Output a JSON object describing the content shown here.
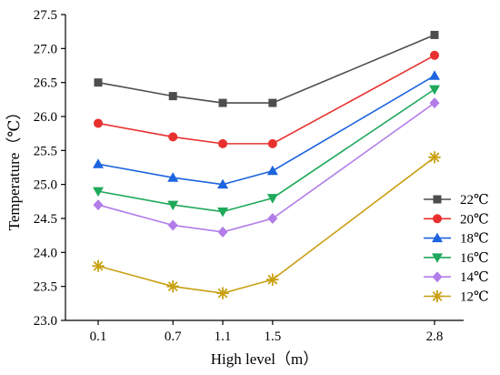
{
  "chart_data": {
    "type": "line",
    "xlabel": "High level（m）",
    "ylabel": "Temperature（℃）",
    "x": [
      0.1,
      0.7,
      1.1,
      1.5,
      2.8
    ],
    "x_tick_labels": [
      "0.1",
      "0.7",
      "1.1",
      "1.5",
      "2.8"
    ],
    "ylim": [
      23.0,
      27.5
    ],
    "y_ticks": [
      23.0,
      23.5,
      24.0,
      24.5,
      25.0,
      25.5,
      26.0,
      26.5,
      27.0,
      27.5
    ],
    "y_tick_labels": [
      "23.0",
      "23.5",
      "24.0",
      "24.5",
      "25.0",
      "25.5",
      "26.0",
      "26.5",
      "27.0",
      "27.5"
    ],
    "grid": false,
    "legend_position": "right",
    "series": [
      {
        "name": "22℃",
        "marker": "square",
        "color": "#4d4d4d",
        "values": [
          26.5,
          26.3,
          26.2,
          26.2,
          27.2
        ]
      },
      {
        "name": "20℃",
        "marker": "circle",
        "color": "#e8312f",
        "values": [
          25.9,
          25.7,
          25.6,
          25.6,
          26.9
        ]
      },
      {
        "name": "18℃",
        "marker": "triangle",
        "color": "#1d64e0",
        "values": [
          25.3,
          25.1,
          25.0,
          25.2,
          26.6
        ]
      },
      {
        "name": "16℃",
        "marker": "triangle-down",
        "color": "#1fa95a",
        "values": [
          24.9,
          24.7,
          24.6,
          24.8,
          26.4
        ]
      },
      {
        "name": "14℃",
        "marker": "diamond",
        "color": "#b27de8",
        "values": [
          24.7,
          24.4,
          24.3,
          24.5,
          26.2
        ]
      },
      {
        "name": "12℃",
        "marker": "asterisk",
        "color": "#c9a013",
        "values": [
          23.8,
          23.5,
          23.4,
          23.6,
          25.4
        ]
      }
    ]
  }
}
